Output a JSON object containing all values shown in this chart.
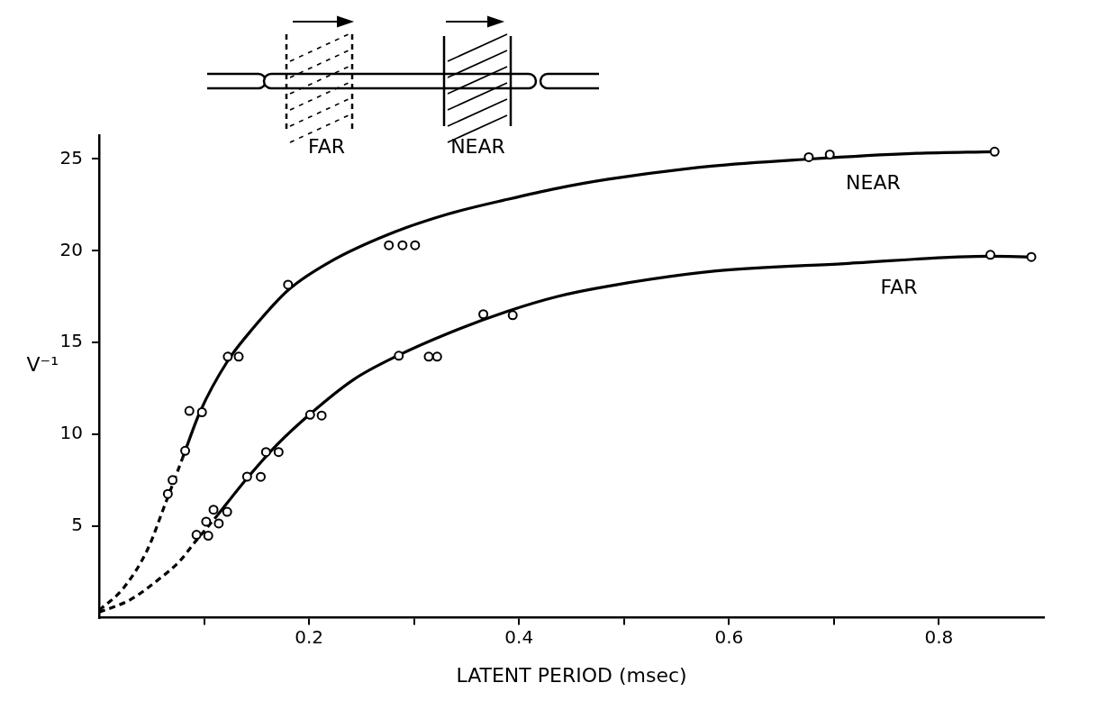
{
  "chart_data": {
    "type": "scatter",
    "xlabel": "LATENT PERIOD (msec)",
    "ylabel": "V⁻¹",
    "xlim": [
      0,
      0.9
    ],
    "ylim": [
      0,
      26.3
    ],
    "xticks": [
      {
        "value": 0.1,
        "label": null
      },
      0.2,
      {
        "value": 0.3,
        "label": null
      },
      0.4,
      {
        "value": 0.5,
        "label": null
      },
      0.6,
      {
        "value": 0.7,
        "label": null
      },
      0.8
    ],
    "yticks": [
      5,
      10,
      15,
      20,
      25
    ],
    "grid": false,
    "legend": false,
    "marker": "circle",
    "series": [
      {
        "type": "line",
        "color": "#000000",
        "line_style": "dashed",
        "marker": "none",
        "x": [
          0,
          0.023,
          0.046,
          0.063,
          0.0795
        ],
        "values": [
          0.4,
          1.6,
          3.7,
          6.2,
          8.7
        ]
      },
      {
        "type": "line",
        "name": "NEAR",
        "color": "#000000",
        "line_style": "solid",
        "marker": "none",
        "x": [
          0.0795,
          0.096,
          0.122,
          0.147,
          0.181,
          0.22,
          0.276,
          0.3325,
          0.389,
          0.436,
          0.485,
          0.581,
          0.677,
          0.774,
          0.853
        ],
        "values": [
          8.7,
          11.2,
          13.95,
          15.8,
          17.9,
          19.4,
          20.9,
          22.0,
          22.8,
          23.4,
          23.9,
          24.6,
          25.0,
          25.3,
          25.4
        ]
      },
      {
        "type": "line",
        "color": "#000000",
        "line_style": "dashed",
        "marker": "none",
        "x": [
          0,
          0.029,
          0.057,
          0.077,
          0.091,
          0.113
        ],
        "values": [
          0.3,
          0.96,
          2.1,
          3.1,
          4.1,
          5.6
        ]
      },
      {
        "type": "line",
        "name": "FAR",
        "color": "#000000",
        "line_style": "solid",
        "marker": "none",
        "x": [
          0.113,
          0.141,
          0.169,
          0.203,
          0.243,
          0.285,
          0.3325,
          0.389,
          0.436,
          0.485,
          0.588,
          0.71,
          0.849,
          0.888
        ],
        "values": [
          5.6,
          7.6,
          9.4,
          11.2,
          13.0,
          14.3,
          15.5,
          16.7,
          17.5,
          18.07,
          18.9,
          19.3,
          19.7,
          19.66
        ]
      },
      {
        "color": "#000000",
        "x": [
          0.0655,
          0.07,
          0.082,
          0.086,
          0.098,
          0.1226,
          0.133,
          0.18,
          0.276,
          0.289,
          0.301,
          0.676,
          0.696,
          0.853
        ],
        "values": [
          6.75,
          7.5,
          9.1,
          11.27,
          11.2,
          14.23,
          14.23,
          18.15,
          20.3,
          20.3,
          20.3,
          25.1,
          25.25,
          25.4
        ]
      },
      {
        "color": "#000000",
        "x": [
          0.0928,
          0.102,
          0.104,
          0.109,
          0.114,
          0.122,
          0.141,
          0.154,
          0.159,
          0.171,
          0.201,
          0.212,
          0.2855,
          0.314,
          0.322,
          0.366,
          0.394,
          0.849,
          0.888
        ],
        "values": [
          4.52,
          5.24,
          4.47,
          5.89,
          5.14,
          5.77,
          7.69,
          7.68,
          9.03,
          9.03,
          11.06,
          11.02,
          14.28,
          14.23,
          14.23,
          16.54,
          16.49,
          19.78,
          19.66
        ]
      }
    ],
    "annotations": [
      "FAR",
      "NEAR"
    ]
  }
}
